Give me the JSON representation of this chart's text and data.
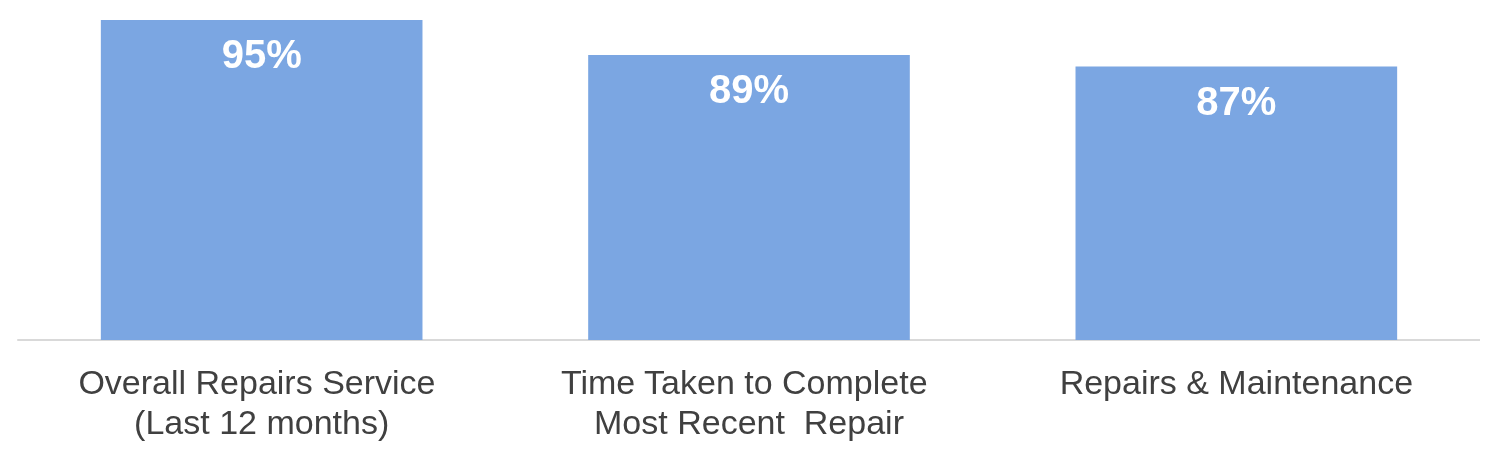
{
  "chart_data": {
    "type": "bar",
    "categories": [
      "Overall Repairs Service (Last 12 months)",
      "Time Taken to Complete Most Recent  Repair",
      "Repairs & Maintenance"
    ],
    "values": [
      95,
      89,
      87
    ],
    "color": "#7ba6e2",
    "data_labels": true,
    "value_labels": [
      "95%",
      "89%",
      "87%"
    ],
    "ylim": [
      40,
      95
    ],
    "tick_labels": "x"
  }
}
